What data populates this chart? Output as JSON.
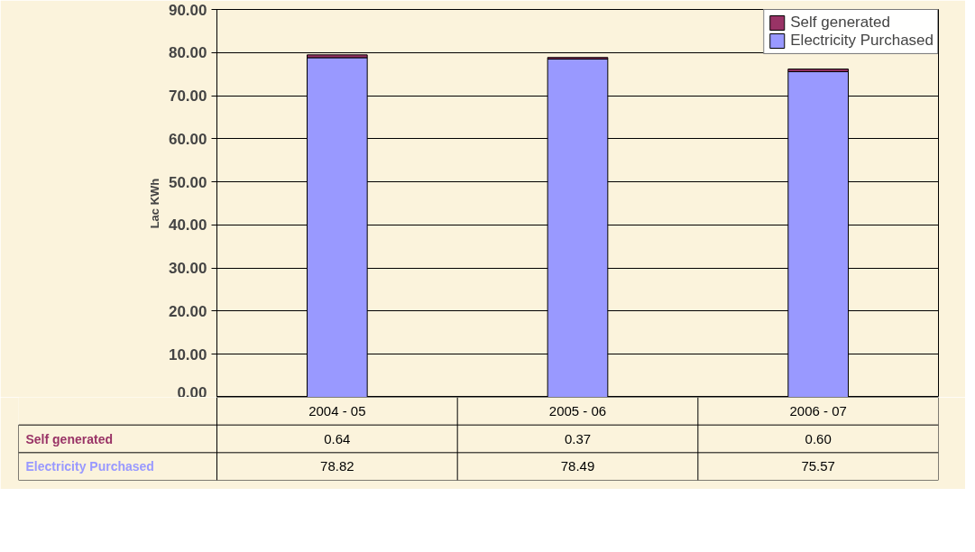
{
  "chart_data": {
    "type": "bar",
    "stacked": true,
    "ylabel": "Lac KWh",
    "categories": [
      "2004 - 05",
      "2005 - 06",
      "2006 - 07"
    ],
    "series": [
      {
        "name": "Electricity Purchased",
        "color": "#9999ff",
        "values": [
          78.82,
          78.49,
          75.57
        ],
        "value_labels": [
          "78.82",
          "78.49",
          "75.57"
        ]
      },
      {
        "name": "Self generated",
        "color": "#993366",
        "values": [
          0.64,
          0.37,
          0.6
        ],
        "value_labels": [
          "0.64",
          "0.37",
          "0.60"
        ]
      }
    ],
    "ylim": [
      0,
      90
    ],
    "yticks": [
      {
        "value": 0,
        "label": "0.00"
      },
      {
        "value": 10,
        "label": "10.00"
      },
      {
        "value": 20,
        "label": "20.00"
      },
      {
        "value": 30,
        "label": "30.00"
      },
      {
        "value": 40,
        "label": "40.00"
      },
      {
        "value": 50,
        "label": "50.00"
      },
      {
        "value": 60,
        "label": "60.00"
      },
      {
        "value": 70,
        "label": "70.00"
      },
      {
        "value": 80,
        "label": "80.00"
      },
      {
        "value": 90,
        "label": "90.00"
      }
    ],
    "grid": "y",
    "legend": "top right",
    "data_labels": true
  }
}
